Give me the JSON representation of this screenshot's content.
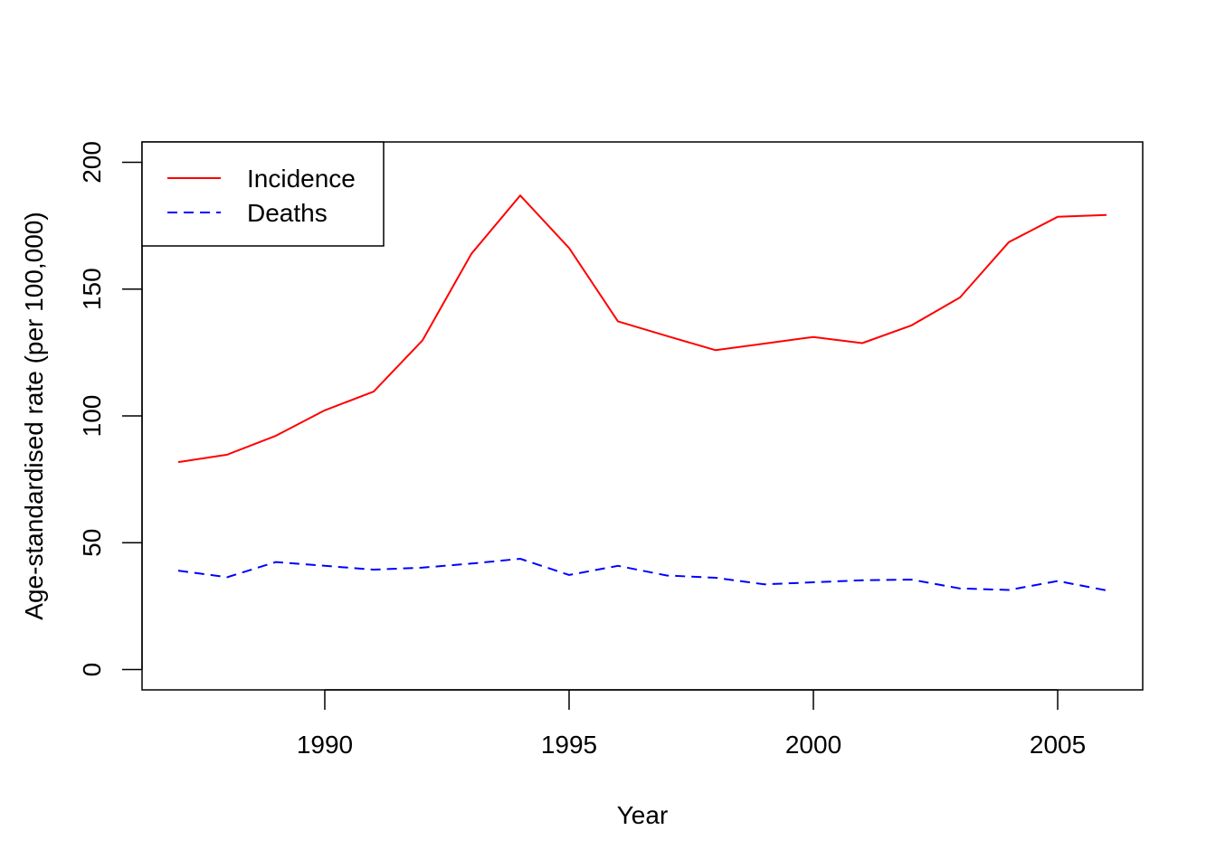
{
  "chart_data": {
    "type": "line",
    "title": "",
    "xlabel": "Year",
    "ylabel": "Age-standardised rate (per 100,000)",
    "xlim": [
      1986.26,
      2006.74
    ],
    "ylim": [
      -8,
      208
    ],
    "x_ticks": [
      1990,
      1995,
      2000,
      2005
    ],
    "y_ticks": [
      0,
      50,
      100,
      150,
      200
    ],
    "grid": false,
    "legend_position": "top-left",
    "x": [
      1987,
      1988,
      1989,
      1990,
      1991,
      1992,
      1993,
      1994,
      1995,
      1996,
      1997,
      1998,
      1999,
      2000,
      2001,
      2002,
      2003,
      2004,
      2005,
      2006
    ],
    "series": [
      {
        "name": "Incidence",
        "color": "#ff0000",
        "line_style": "solid",
        "values": [
          81.8,
          84.7,
          92.2,
          102.2,
          109.6,
          129.8,
          163.9,
          186.9,
          166.2,
          137.3,
          131.5,
          125.9,
          128.5,
          131.1,
          128.7,
          135.6,
          146.7,
          168.5,
          178.5,
          179.2
        ]
      },
      {
        "name": "Deaths",
        "color": "#0000ff",
        "line_style": "dashed",
        "values": [
          39.0,
          36.4,
          42.4,
          40.9,
          39.4,
          40.2,
          41.8,
          43.7,
          37.3,
          40.9,
          37.1,
          36.2,
          33.6,
          34.4,
          35.2,
          35.5,
          32.0,
          31.4,
          34.9,
          31.2
        ]
      }
    ]
  }
}
